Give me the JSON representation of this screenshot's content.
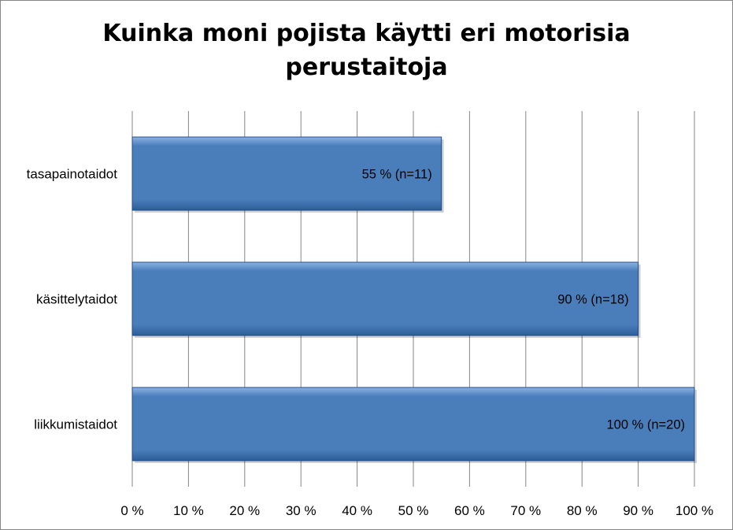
{
  "chart_data": {
    "type": "bar",
    "orientation": "horizontal",
    "title_lines": [
      "Kuinka moni pojista käytti eri motorisia",
      "perustaitoja"
    ],
    "categories": [
      "tasapainotaidot",
      "käsittelytaidot",
      "liikkumistaidot"
    ],
    "values": [
      55,
      90,
      100
    ],
    "data_labels": [
      "55 %  (n=11)",
      "90 % (n=18)",
      "100 % (n=20)"
    ],
    "xlim": [
      0,
      100
    ],
    "x_ticks": [
      "0 %",
      "10 %",
      "20 %",
      "30 %",
      "40 %",
      "50 %",
      "60 %",
      "70 %",
      "80 %",
      "90 %",
      "100 %"
    ],
    "grid": "vertical",
    "legend": "none",
    "colors": {
      "bar_fill": "#4a7ebb",
      "bar_light": "#8db3e2",
      "bar_dark": "#2c5d98",
      "bar_edge": "#1f4d8a",
      "grid": "#868686",
      "border": "#868686"
    }
  }
}
